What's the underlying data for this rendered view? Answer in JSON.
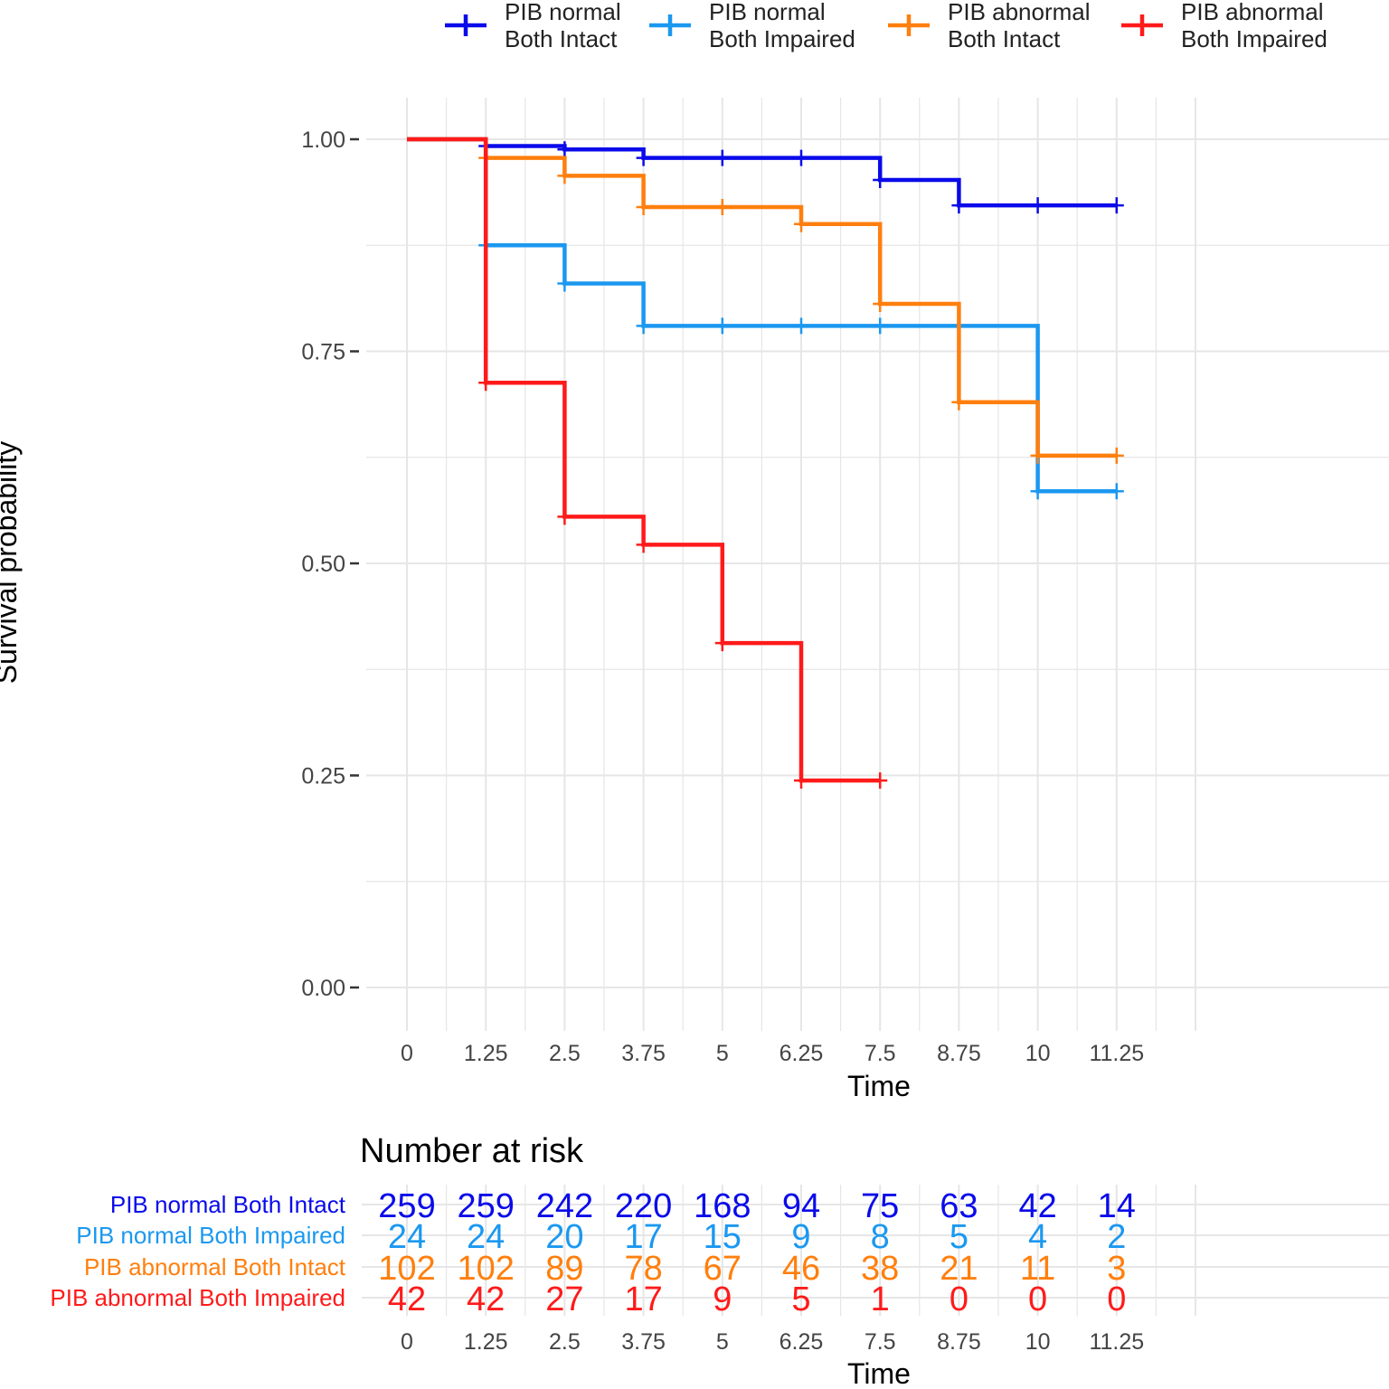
{
  "chart_data": {
    "type": "line",
    "step": true,
    "title": "",
    "xlabel": "Time",
    "ylabel": "Survival probability",
    "xlim": [
      0,
      11.25
    ],
    "ylim": [
      0,
      1
    ],
    "x_ticks": [
      "0",
      "1.25",
      "2.5",
      "3.75",
      "5",
      "6.25",
      "7.5",
      "8.75",
      "10",
      "11.25"
    ],
    "y_ticks": [
      "0.00",
      "0.25",
      "0.50",
      "0.75",
      "1.00"
    ],
    "grid": true,
    "legend_position": "top",
    "series": [
      {
        "name": "PIB normal\nBoth Intact",
        "color": "#0a0aea",
        "steps": [
          [
            0,
            1.0
          ],
          [
            1.25,
            0.992
          ],
          [
            2.5,
            0.988
          ],
          [
            3.75,
            0.978
          ],
          [
            7.5,
            0.952
          ],
          [
            8.75,
            0.922
          ],
          [
            11.25,
            0.922
          ]
        ],
        "censor_marks": [
          [
            1.25,
            0.992
          ],
          [
            2.5,
            0.988
          ],
          [
            3.75,
            0.978
          ],
          [
            5,
            0.978
          ],
          [
            6.25,
            0.978
          ],
          [
            7.5,
            0.952
          ],
          [
            8.75,
            0.922
          ],
          [
            10,
            0.922
          ],
          [
            11.25,
            0.922
          ]
        ]
      },
      {
        "name": "PIB normal\nBoth Impaired",
        "color": "#1b98f0",
        "steps": [
          [
            0,
            1.0
          ],
          [
            1.25,
            0.875
          ],
          [
            2.5,
            0.83
          ],
          [
            3.75,
            0.78
          ],
          [
            10,
            0.585
          ],
          [
            11.25,
            0.585
          ]
        ],
        "censor_marks": [
          [
            1.25,
            0.875
          ],
          [
            2.5,
            0.83
          ],
          [
            3.75,
            0.78
          ],
          [
            5,
            0.78
          ],
          [
            6.25,
            0.78
          ],
          [
            7.5,
            0.78
          ],
          [
            8.75,
            0.78
          ],
          [
            10,
            0.585
          ],
          [
            11.25,
            0.585
          ]
        ]
      },
      {
        "name": "PIB abnormal\nBoth Intact",
        "color": "#ff7f0e",
        "steps": [
          [
            0,
            1.0
          ],
          [
            1.25,
            0.978
          ],
          [
            2.5,
            0.957
          ],
          [
            3.75,
            0.92
          ],
          [
            6.25,
            0.9
          ],
          [
            7.5,
            0.806
          ],
          [
            8.75,
            0.69
          ],
          [
            10,
            0.627
          ],
          [
            11.25,
            0.627
          ]
        ],
        "censor_marks": [
          [
            1.25,
            0.978
          ],
          [
            2.5,
            0.957
          ],
          [
            3.75,
            0.92
          ],
          [
            5,
            0.92
          ],
          [
            6.25,
            0.9
          ],
          [
            7.5,
            0.806
          ],
          [
            8.75,
            0.69
          ],
          [
            10,
            0.627
          ],
          [
            11.25,
            0.627
          ]
        ]
      },
      {
        "name": "PIB abnormal\nBoth Impaired",
        "color": "#ff1a1a",
        "steps": [
          [
            0,
            1.0
          ],
          [
            1.25,
            0.713
          ],
          [
            2.5,
            0.555
          ],
          [
            3.75,
            0.522
          ],
          [
            5,
            0.406
          ],
          [
            6.25,
            0.244
          ],
          [
            7.5,
            0.244
          ]
        ],
        "censor_marks": [
          [
            1.25,
            0.713
          ],
          [
            2.5,
            0.555
          ],
          [
            3.75,
            0.522
          ],
          [
            5,
            0.406
          ],
          [
            6.25,
            0.244
          ],
          [
            7.5,
            0.244
          ]
        ]
      }
    ],
    "risk_table": {
      "title": "Number at risk",
      "xlabel": "Time",
      "x_ticks": [
        "0",
        "1.25",
        "2.5",
        "3.75",
        "5",
        "6.25",
        "7.5",
        "8.75",
        "10",
        "11.25"
      ],
      "rows": [
        {
          "label": "PIB normal Both Intact",
          "color": "#0a0aea",
          "values": [
            "259",
            "259",
            "242",
            "220",
            "168",
            "94",
            "75",
            "63",
            "42",
            "14"
          ]
        },
        {
          "label": "PIB normal Both Impaired",
          "color": "#1b98f0",
          "values": [
            "24",
            "24",
            "20",
            "17",
            "15",
            "9",
            "8",
            "5",
            "4",
            "2"
          ]
        },
        {
          "label": "PIB abnormal Both Intact",
          "color": "#ff7f0e",
          "values": [
            "102",
            "102",
            "89",
            "78",
            "67",
            "46",
            "38",
            "21",
            "11",
            "3"
          ]
        },
        {
          "label": "PIB abnormal Both Impaired",
          "color": "#ff1a1a",
          "values": [
            "42",
            "42",
            "27",
            "17",
            "9",
            "5",
            "1",
            "0",
            "0",
            "0"
          ]
        }
      ]
    }
  }
}
